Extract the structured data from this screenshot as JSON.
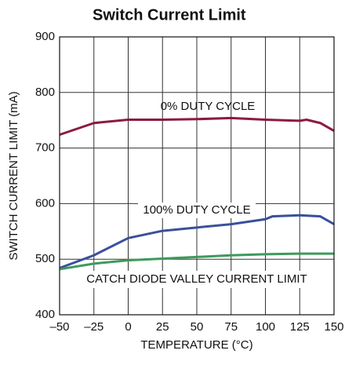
{
  "chart_data": {
    "type": "line",
    "title": "Switch Current Limit",
    "xlabel": "TEMPERATURE (°C)",
    "ylabel": "SWITCH CURRENT LIMIT (mA)",
    "annotations": [
      "0% DUTY CYCLE",
      "100% DUTY CYCLE",
      "CATCH DIODE VALLEY CURRENT LIMIT"
    ],
    "xlim": [
      -50,
      150
    ],
    "xticks": [
      {
        "value": -50,
        "label": "–50"
      },
      {
        "value": -25,
        "label": "–25"
      },
      0,
      25,
      50,
      75,
      100,
      125,
      150
    ],
    "ylim": [
      400,
      900
    ],
    "yticks": [
      400,
      500,
      600,
      700,
      800,
      900
    ],
    "grid": true,
    "series": [
      {
        "name": "0% DUTY CYCLE",
        "color": "#8c1b3e",
        "x": [
          -50,
          -25,
          0,
          25,
          50,
          75,
          100,
          125,
          130,
          140,
          150
        ],
        "values": [
          724,
          745,
          751,
          751,
          752,
          754,
          751,
          749,
          751,
          745,
          731
        ]
      },
      {
        "name": "100% DUTY CYCLE",
        "color": "#3b4f9c",
        "x": [
          -50,
          -25,
          0,
          25,
          50,
          75,
          100,
          105,
          125,
          140,
          150
        ],
        "values": [
          484,
          507,
          538,
          551,
          557,
          563,
          572,
          577,
          579,
          577,
          563
        ]
      },
      {
        "name": "CATCH DIODE VALLEY CURRENT LIMIT",
        "color": "#3d9a5c",
        "x": [
          -50,
          -25,
          0,
          25,
          50,
          75,
          100,
          125,
          150
        ],
        "values": [
          482,
          492,
          498,
          501,
          504,
          507,
          509,
          510,
          510
        ]
      }
    ]
  }
}
